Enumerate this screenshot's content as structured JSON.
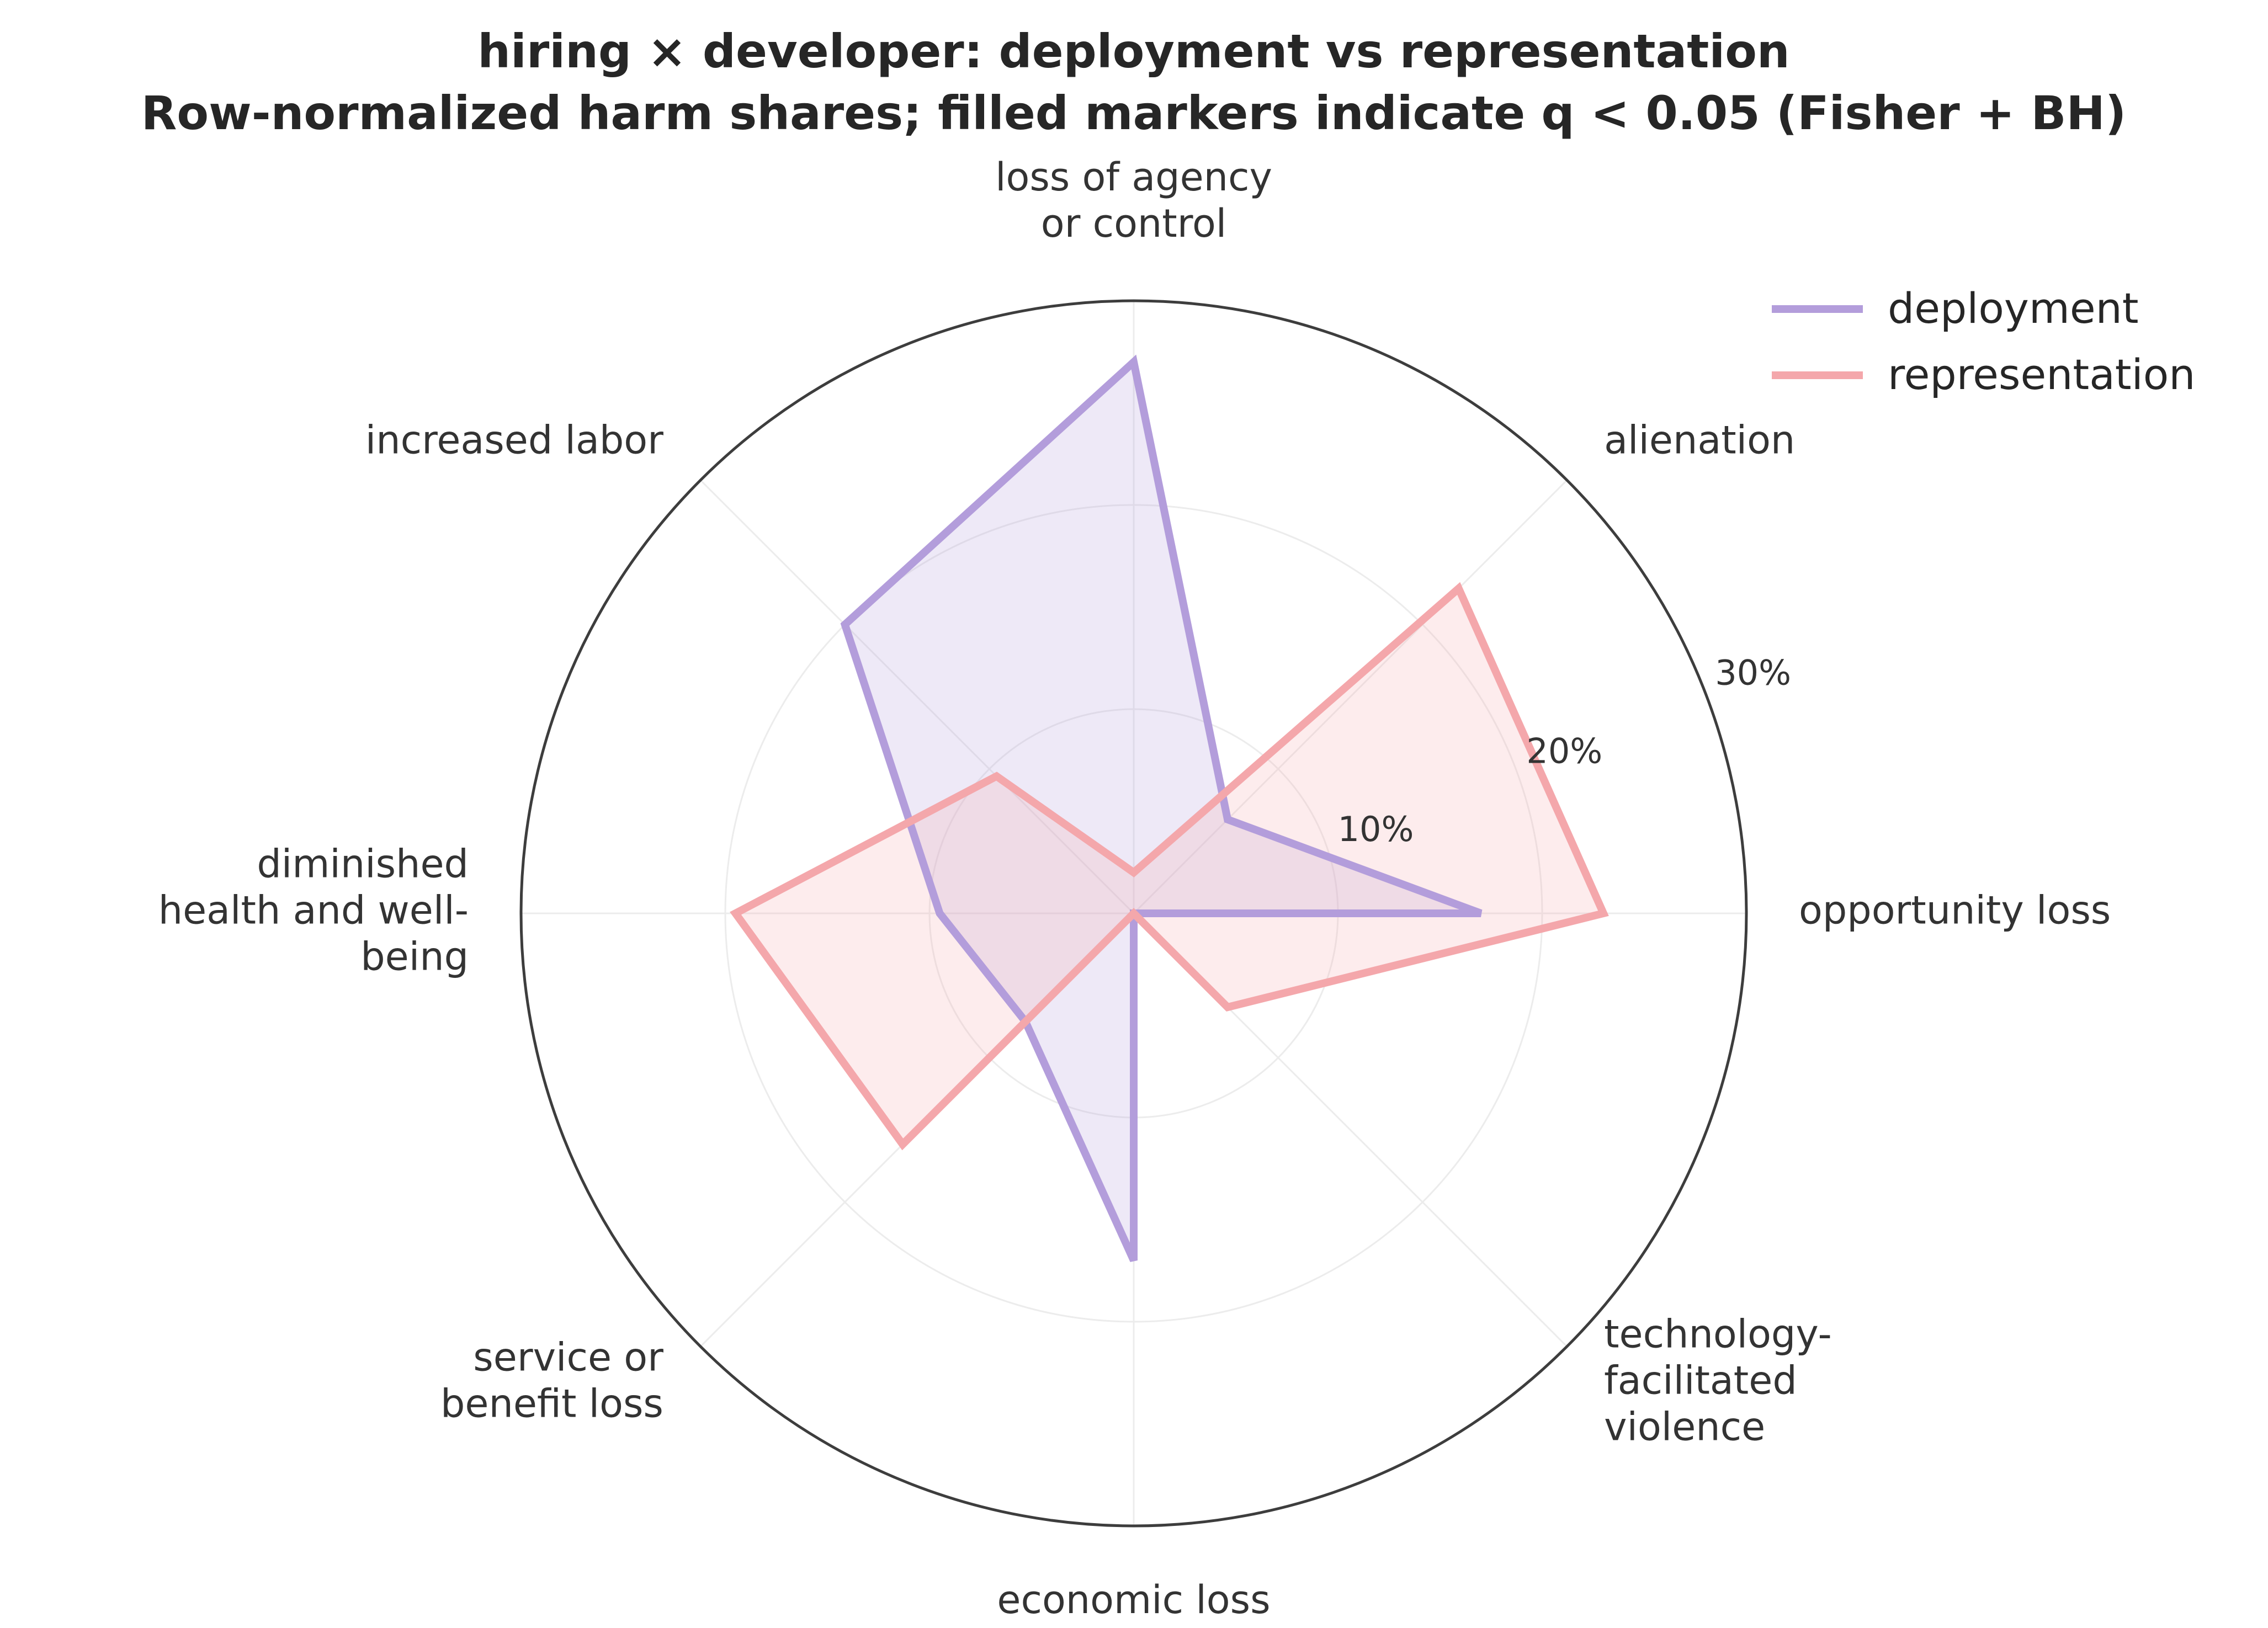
{
  "chart_data": {
    "type": "radar",
    "title": "hiring × developer: deployment vs representation",
    "subtitle": "Row-normalized harm shares; filled markers indicate q < 0.05 (Fisher + BH)",
    "categories": [
      "opportunity loss",
      "alienation",
      "loss of agency or control",
      "increased labor",
      "diminished health and well-being",
      "service or benefit loss",
      "economic loss",
      "technology-facilitated violence"
    ],
    "category_lines": [
      [
        "opportunity loss"
      ],
      [
        "alienation"
      ],
      [
        "loss of agency",
        "or control"
      ],
      [
        "increased labor"
      ],
      [
        "diminished",
        "health and well-",
        "being"
      ],
      [
        "service or",
        "benefit loss"
      ],
      [
        "economic loss"
      ],
      [
        "technology-",
        "facilitated",
        "violence"
      ]
    ],
    "radial_ticks": [
      "10%",
      "20%",
      "30%"
    ],
    "radial_tick_values": [
      10,
      20,
      30
    ],
    "rlim": [
      0,
      30
    ],
    "series": [
      {
        "name": "deployment",
        "color": "#b39ddb",
        "values": [
          17,
          6.5,
          27,
          20,
          9.5,
          7.5,
          17,
          0
        ]
      },
      {
        "name": "representation",
        "color": "#f4a7ab",
        "values": [
          23,
          22.5,
          2,
          9.5,
          19.5,
          16,
          0,
          6.5
        ]
      }
    ],
    "grid": true,
    "legend_position": "top-right"
  }
}
